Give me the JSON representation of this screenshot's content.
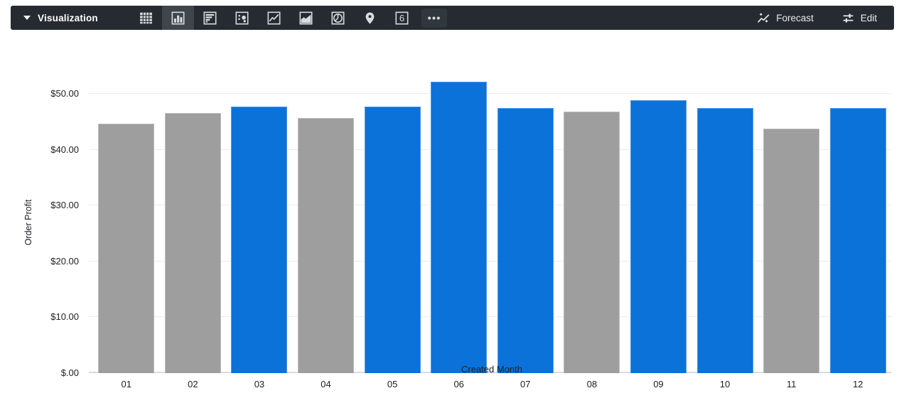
{
  "toolbar": {
    "title": "Visualization",
    "icons": [
      {
        "name": "table",
        "selected": false
      },
      {
        "name": "column-chart",
        "selected": true
      },
      {
        "name": "bar-chart",
        "selected": false
      },
      {
        "name": "scatter",
        "selected": false
      },
      {
        "name": "line-chart",
        "selected": false
      },
      {
        "name": "area-chart",
        "selected": false
      },
      {
        "name": "pie-chart",
        "selected": false
      },
      {
        "name": "map",
        "selected": false
      },
      {
        "name": "single-value",
        "selected": false
      },
      {
        "name": "more",
        "selected": false
      }
    ],
    "single_value_glyph": "6",
    "forecast_label": "Forecast",
    "edit_label": "Edit"
  },
  "chart_data": {
    "type": "bar",
    "title": "",
    "xlabel": "Created Month",
    "ylabel": "Order Profit",
    "categories": [
      "01",
      "02",
      "03",
      "04",
      "05",
      "06",
      "07",
      "08",
      "09",
      "10",
      "11",
      "12"
    ],
    "values": [
      44.7,
      46.6,
      47.7,
      45.7,
      47.7,
      52.2,
      47.4,
      46.8,
      48.8,
      47.5,
      43.8,
      47.5
    ],
    "bar_colors": [
      "gray",
      "gray",
      "blue",
      "gray",
      "blue",
      "blue",
      "blue",
      "gray",
      "blue",
      "blue",
      "gray",
      "blue"
    ],
    "colors": {
      "blue": "#0b72d9",
      "gray": "#9e9e9e"
    },
    "yticks": [
      "$.00",
      "$10.00",
      "$20.00",
      "$30.00",
      "$40.00",
      "$50.00"
    ],
    "ytick_values": [
      0,
      10,
      20,
      30,
      40,
      50
    ],
    "ylim": [
      0,
      53.8
    ],
    "grid": true,
    "legend": "none"
  }
}
